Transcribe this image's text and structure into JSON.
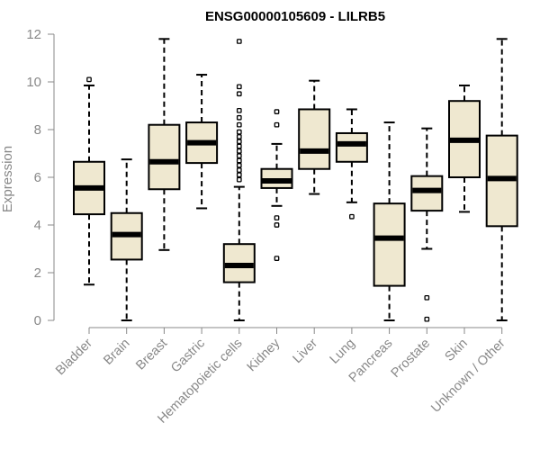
{
  "chart_data": {
    "type": "boxplot",
    "title": "ENSG00000105609 - LILRB5",
    "xlabel": "",
    "ylabel": "Expression",
    "ylim": [
      0,
      12
    ],
    "yticks": [
      0,
      2,
      4,
      6,
      8,
      10,
      12
    ],
    "box_color": "#EFE8D0",
    "categories": [
      "Bladder",
      "Brain",
      "Breast",
      "Gastric",
      "Hematopoietic cells",
      "Kidney",
      "Liver",
      "Lung",
      "Pancreas",
      "Prostate",
      "Skin",
      "Unknown / Other"
    ],
    "boxes": [
      {
        "name": "Bladder",
        "min": 1.5,
        "q1": 4.45,
        "median": 5.55,
        "q3": 6.65,
        "max": 9.85,
        "outliers": [
          10.1
        ]
      },
      {
        "name": "Brain",
        "min": 0.0,
        "q1": 2.55,
        "median": 3.6,
        "q3": 4.5,
        "max": 6.75,
        "outliers": []
      },
      {
        "name": "Breast",
        "min": 2.95,
        "q1": 5.5,
        "median": 6.65,
        "q3": 8.2,
        "max": 11.8,
        "outliers": []
      },
      {
        "name": "Gastric",
        "min": 4.7,
        "q1": 6.6,
        "median": 7.45,
        "q3": 8.3,
        "max": 10.3,
        "outliers": []
      },
      {
        "name": "Hematopoietic cells",
        "min": 0.0,
        "q1": 1.6,
        "median": 2.3,
        "q3": 3.2,
        "max": 5.6,
        "outliers": [
          5.9,
          6.1,
          6.3,
          6.5,
          6.7,
          6.9,
          7.1,
          7.3,
          7.5,
          7.7,
          7.9,
          8.2,
          8.5,
          8.8,
          9.5,
          9.8,
          11.7
        ]
      },
      {
        "name": "Kidney",
        "min": 4.8,
        "q1": 5.55,
        "median": 5.85,
        "q3": 6.35,
        "max": 7.4,
        "outliers": [
          8.2,
          8.75,
          4.3,
          4.0,
          2.6
        ]
      },
      {
        "name": "Liver",
        "min": 5.3,
        "q1": 6.35,
        "median": 7.1,
        "q3": 8.85,
        "max": 10.05,
        "outliers": []
      },
      {
        "name": "Lung",
        "min": 4.95,
        "q1": 6.65,
        "median": 7.4,
        "q3": 7.85,
        "max": 8.85,
        "outliers": [
          4.35
        ]
      },
      {
        "name": "Pancreas",
        "min": 0.0,
        "q1": 1.45,
        "median": 3.45,
        "q3": 4.9,
        "max": 8.3,
        "outliers": []
      },
      {
        "name": "Prostate",
        "min": 3.0,
        "q1": 4.6,
        "median": 5.45,
        "q3": 6.05,
        "max": 8.05,
        "outliers": [
          0.95,
          0.05
        ]
      },
      {
        "name": "Skin",
        "min": 4.55,
        "q1": 6.0,
        "median": 7.55,
        "q3": 9.2,
        "max": 9.85,
        "outliers": []
      },
      {
        "name": "Unknown / Other",
        "min": 0.0,
        "q1": 3.95,
        "median": 5.95,
        "q3": 7.75,
        "max": 11.8,
        "outliers": []
      }
    ]
  }
}
